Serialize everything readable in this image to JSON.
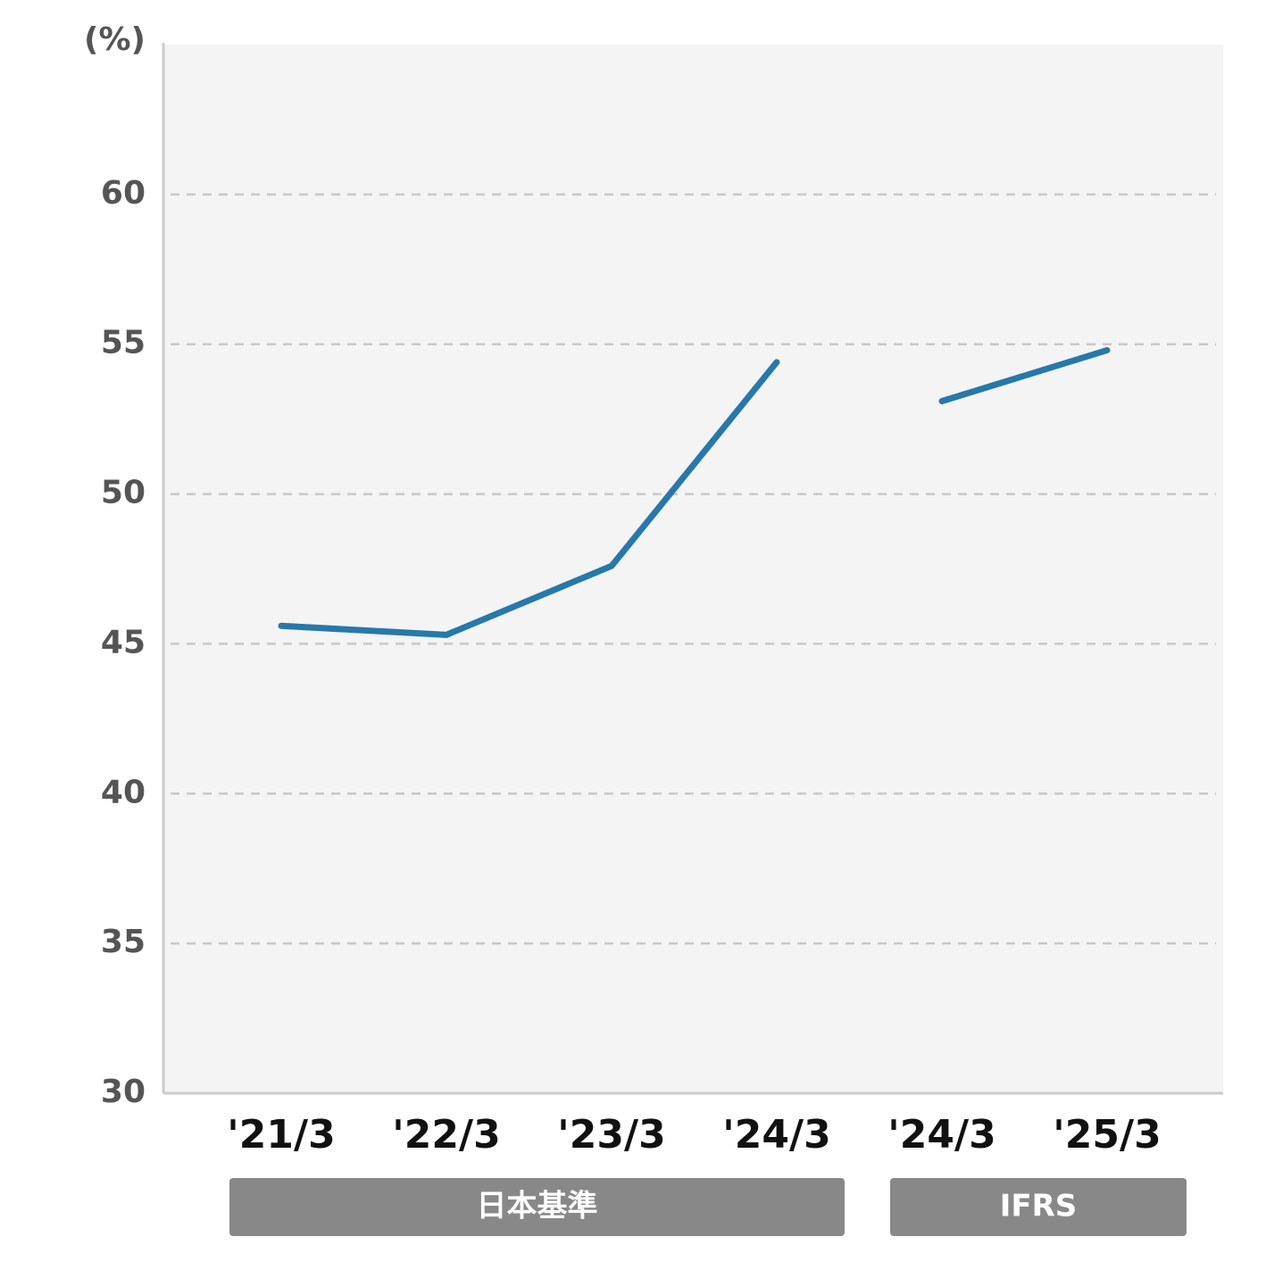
{
  "chart_data": {
    "type": "line",
    "y_unit": "(%)",
    "categories": [
      "'21/3",
      "'22/3",
      "'23/3",
      "'24/3",
      "'24/3",
      "'25/3"
    ],
    "series": [
      {
        "name": "日本基準",
        "color": "#2778ab",
        "values": [
          45.6,
          45.3,
          47.6,
          54.4,
          null,
          null
        ]
      },
      {
        "name": "IFRS",
        "color": "#2778ab",
        "values": [
          null,
          null,
          null,
          null,
          53.1,
          54.8
        ]
      }
    ],
    "ylim": [
      30,
      65
    ],
    "yticks": [
      30,
      35,
      40,
      45,
      50,
      55,
      60
    ],
    "grid": true
  }
}
